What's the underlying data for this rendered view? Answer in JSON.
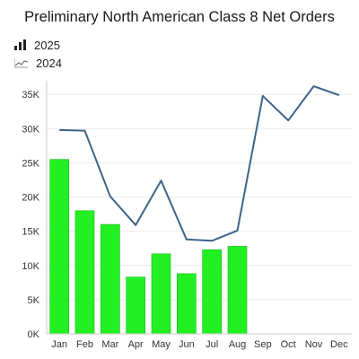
{
  "chart_data": {
    "type": "bar",
    "title": "Preliminary North American Class 8 Net Orders",
    "categories": [
      "Jan",
      "Feb",
      "Mar",
      "Apr",
      "May",
      "Jun",
      "Jul",
      "Aug",
      "Sep",
      "Oct",
      "Nov",
      "Dec"
    ],
    "series": [
      {
        "name": "2025",
        "type": "bar",
        "values": [
          25500,
          18000,
          16000,
          8300,
          11700,
          8800,
          12300,
          12800,
          null,
          null,
          null,
          null
        ]
      },
      {
        "name": "2024",
        "type": "line",
        "values": [
          29800,
          29700,
          20100,
          15900,
          22400,
          13800,
          13600,
          15100,
          34800,
          31200,
          36200,
          34900
        ]
      }
    ],
    "ylim": [
      0,
      37000
    ],
    "yticks": [
      0,
      5000,
      10000,
      15000,
      20000,
      25000,
      30000,
      35000
    ],
    "ytick_labels": [
      "0K",
      "5K",
      "10K",
      "15K",
      "20K",
      "25K",
      "30K",
      "35K"
    ],
    "xlabel": "",
    "ylabel": "",
    "legend": "top-left",
    "grid": true,
    "colors": {
      "bar": "#22f022",
      "bar_stroke": "#16b816",
      "line": "#3d6489",
      "grid": "#ececec",
      "axis": "#cccccc"
    },
    "icons": {
      "bar_series": "bar-chart-icon",
      "line_series": "line-chart-icon"
    }
  }
}
